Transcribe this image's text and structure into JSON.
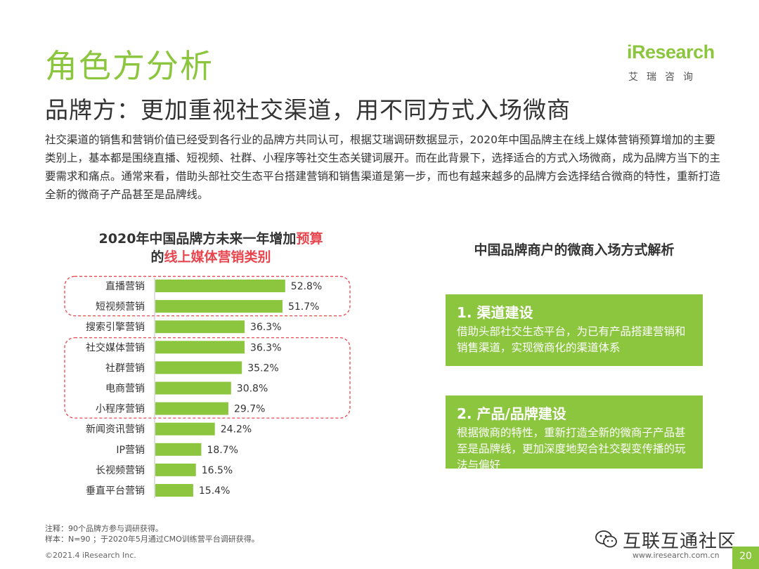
{
  "title": "角色方分析",
  "subtitle": "品牌方：更加重视社交渠道，用不同方式入场微商",
  "logo": {
    "brand": "iResearch",
    "sub": "艾瑞咨询"
  },
  "paragraph": "社交渠道的销售和营销价值已经受到各行业的品牌方共同认可，根据艾瑞调研数据显示，2020年中国品牌主在线上媒体营销预算增加的主要类别上，基本都是围绕直播、短视频、社群、小程序等社交生态关键词展开。而在此背景下，选择适合的方式入场微商，成为品牌方当下的主要需求和痛点。通常来看，借助头部社交生态平台搭建营销和销售渠道是第一步，而也有越来越多的品牌方会选择结合微商的特性，重新打造全新的微商子产品甚至是品牌线。",
  "chart_title": {
    "part1": "2020年中国品牌方未来一年增加",
    "part2": "预算",
    "part3": "的",
    "part4": "线上媒体营销类别"
  },
  "chart_data": {
    "type": "bar",
    "orientation": "horizontal",
    "title": "2020年中国品牌方未来一年增加预算的线上媒体营销类别",
    "categories": [
      "直播营销",
      "短视频营销",
      "搜索引擎营销",
      "社交媒体营销",
      "社群营销",
      "电商营销",
      "小程序营销",
      "新闻资讯营销",
      "IP营销",
      "长视频营销",
      "垂直平台营销"
    ],
    "values": [
      52.8,
      51.7,
      36.3,
      36.3,
      35.2,
      30.8,
      29.7,
      24.2,
      18.7,
      16.5,
      15.4
    ],
    "unit": "%",
    "xlim": [
      0,
      100
    ],
    "bar_color": "#8cc63f",
    "highlight_groups": [
      [
        0,
        1
      ],
      [
        3,
        6
      ]
    ],
    "highlight_color": "#e8464f"
  },
  "right_title": "中国品牌商户的微商入场方式解析",
  "cards": [
    {
      "heading": "1. 渠道建设",
      "body": "借助头部社交生态平台，为已有产品搭建营销和销售渠道，实现微商化的渠道体系"
    },
    {
      "heading": "2. 产品/品牌建设",
      "body": "根据微商的特性，重新打造全新的微商子产品甚至是品牌线，更加深度地契合社交裂变传播的玩法与偏好"
    }
  ],
  "notes": {
    "line1": "注释：90个品牌方参与调研获得。",
    "line2": "样本：N=90 ；于2020年5月通过CMO训练营平台调研获得。"
  },
  "copyright": "©2021.4 iResearch Inc.",
  "website": "www.iresearch.com.cn",
  "page_number": "20",
  "watermark": "互联互通社区",
  "colors": {
    "accent": "#8cc63f",
    "highlight": "#e8464f"
  }
}
